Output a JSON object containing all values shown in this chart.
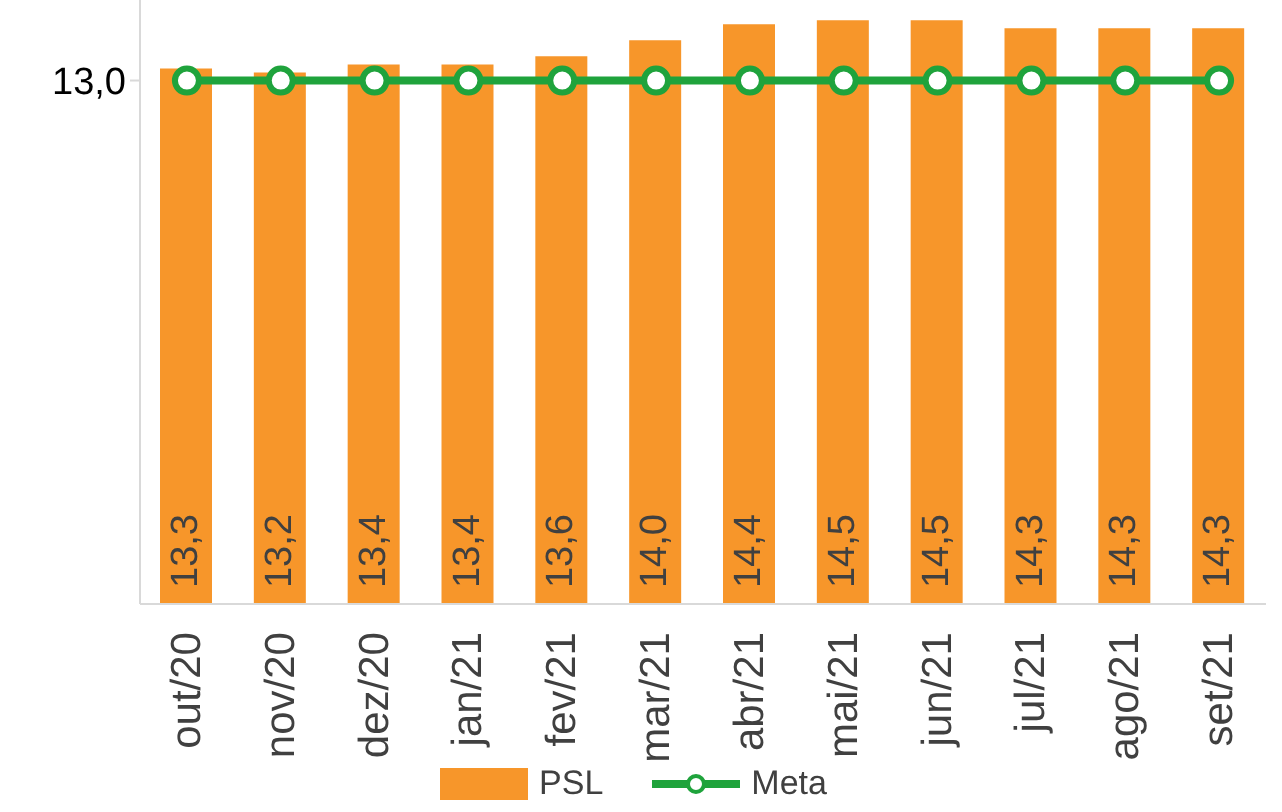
{
  "chart_data": {
    "type": "bar",
    "categories": [
      "out/20",
      "nov/20",
      "dez/20",
      "jan/21",
      "fev/21",
      "mar/21",
      "abr/21",
      "mai/21",
      "jun/21",
      "jul/21",
      "ago/21",
      "set/21"
    ],
    "series": [
      {
        "name": "PSL",
        "color": "#f7962a",
        "values": [
          13.3,
          13.2,
          13.4,
          13.4,
          13.6,
          14.0,
          14.4,
          14.5,
          14.5,
          14.3,
          14.3,
          14.3
        ],
        "value_labels": [
          "13,3",
          "13,2",
          "13,4",
          "13,4",
          "13,6",
          "14,0",
          "14,4",
          "14,5",
          "14,5",
          "14,3",
          "14,3",
          "14,3"
        ]
      },
      {
        "name": "Meta",
        "type": "line",
        "color": "#1fa33c",
        "marker": "circle",
        "values": [
          13.0,
          13.0,
          13.0,
          13.0,
          13.0,
          13.0,
          13.0,
          13.0,
          13.0,
          13.0,
          13.0,
          13.0
        ]
      }
    ],
    "ylim": [
      0,
      15
    ],
    "yticks": [
      {
        "value": 13,
        "label": "13,0"
      }
    ],
    "grid": false,
    "legend": "bottom"
  }
}
